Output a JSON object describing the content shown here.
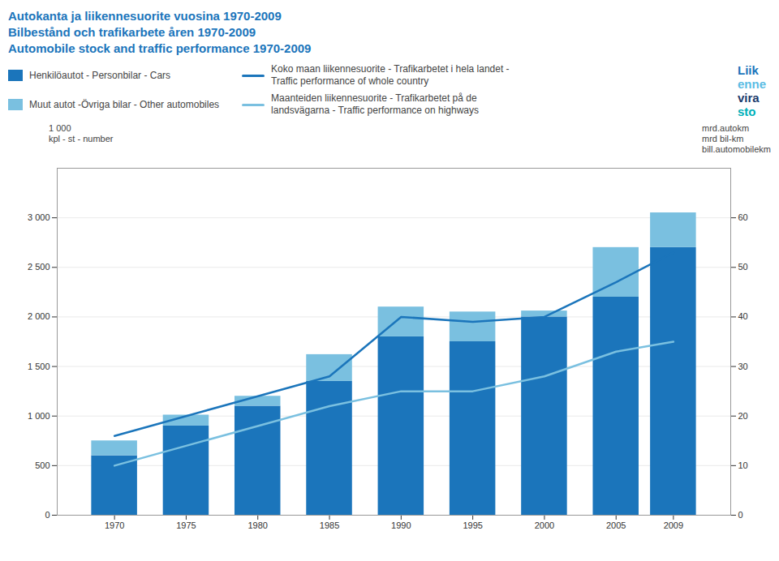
{
  "chart_data": {
    "type": "bar",
    "title": "Autokanta ja liikennesuorite vuosina 1970-2009\nBilbestånd och trafikarbete åren 1970-2009\nAutomobile stock and traffic performance 1970-2009",
    "x": [
      1970,
      1975,
      1980,
      1985,
      1990,
      1995,
      2000,
      2005,
      2009
    ],
    "xlim": [
      1966,
      2013
    ],
    "xticks": [
      1970,
      1975,
      1980,
      1985,
      1990,
      1995,
      2000,
      2005,
      2009
    ],
    "ylabel": "1 000\nkpl - st - number",
    "ylim": [
      0,
      3500
    ],
    "yticks": [
      0,
      500,
      {
        "value": 1000,
        "label": "1 000"
      },
      {
        "value": 1500,
        "label": "1 500"
      },
      {
        "value": 2000,
        "label": "2 000"
      },
      {
        "value": 2500,
        "label": "2 500"
      },
      {
        "value": 3000,
        "label": "3 000"
      }
    ],
    "y2label": "mrd.autokm\nmrd bil-km\nbill.automobilekm",
    "y2lim": [
      0,
      70
    ],
    "y2ticks": [
      0,
      10,
      20,
      30,
      40,
      50,
      60
    ],
    "grid": true,
    "stacked": true,
    "series": [
      {
        "name": "Henkilöautot - Personbilar - Cars",
        "type": "bar",
        "color": "#1b75bb",
        "values": [
          600,
          900,
          1100,
          1350,
          1800,
          1750,
          2000,
          2200,
          2700
        ]
      },
      {
        "name": "Muut autot  -Övriga bilar - Other automobiles",
        "type": "bar",
        "color": "#7ac0e0",
        "values": [
          150,
          110,
          100,
          270,
          300,
          300,
          60,
          500,
          350
        ]
      },
      {
        "name": "Koko maan liikennesuorite - Trafikarbetet i hela landet -\nTraffic performance of whole country",
        "type": "line",
        "axis": "y2",
        "color": "#1b75bb",
        "values": [
          16,
          20,
          24,
          28,
          40,
          39,
          40,
          47,
          53
        ]
      },
      {
        "name": "Maanteiden liikennesuorite - Trafikarbetet på de\nlandsvägarna - Traffic performance on highways",
        "type": "line",
        "axis": "y2",
        "color": "#7ac0e0",
        "values": [
          10,
          14,
          18,
          22,
          25,
          25,
          28,
          33,
          35
        ]
      }
    ],
    "annotations": [
      {
        "text": "Liik",
        "color": "#1b75bb"
      },
      {
        "text": "enne",
        "color": "#5bbce4"
      },
      {
        "text": "vira",
        "color": "#1b3a6b"
      },
      {
        "text": "sto",
        "color": "#00b0b9"
      }
    ]
  }
}
